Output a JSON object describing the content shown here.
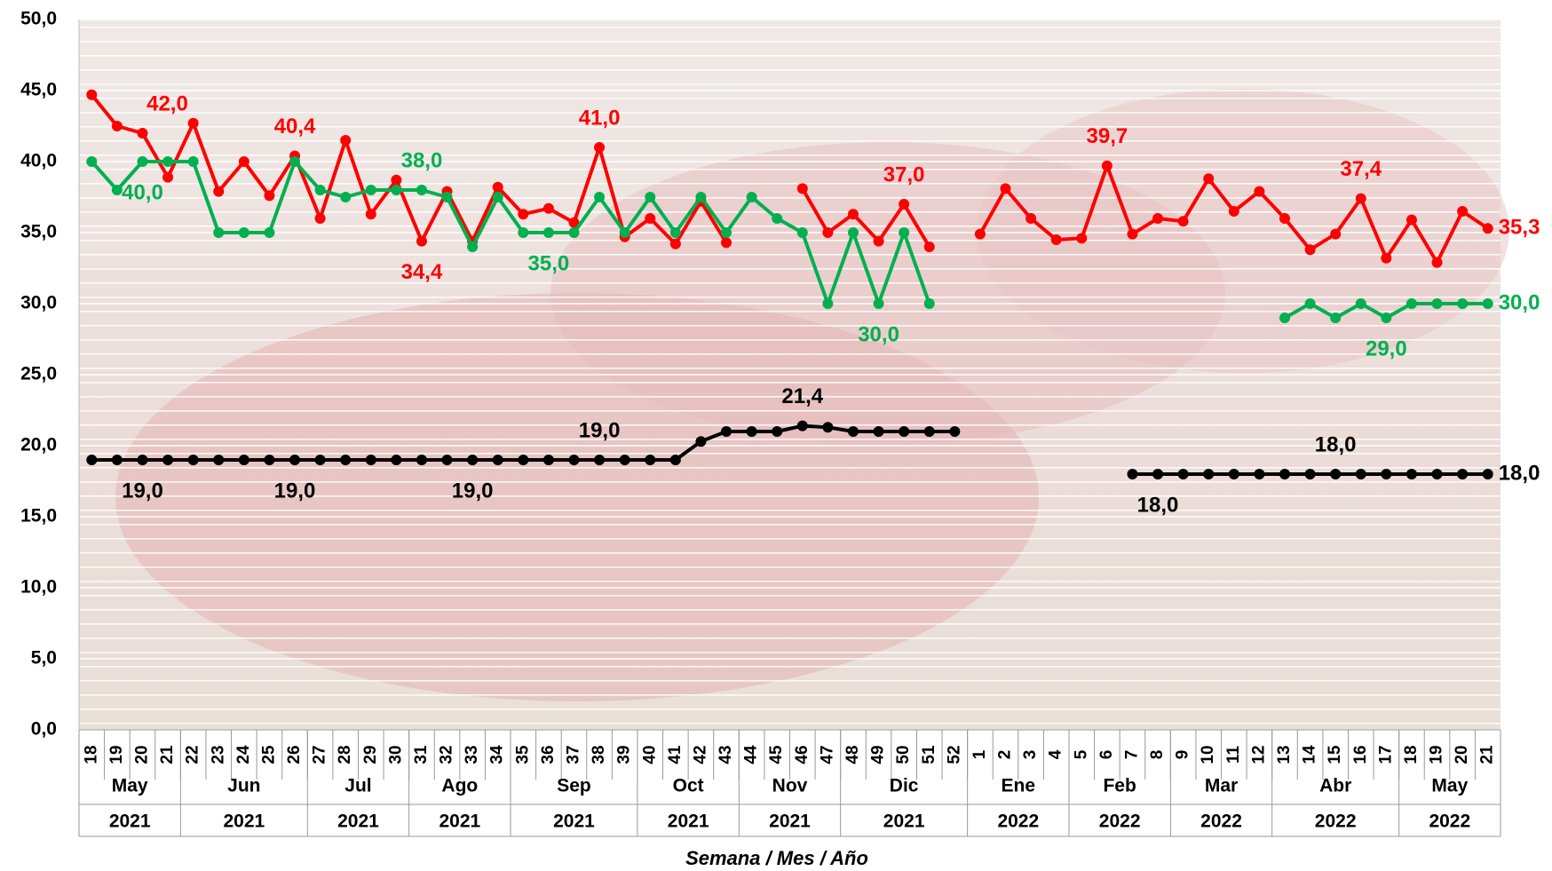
{
  "chart_data": {
    "type": "line",
    "x_label": "Semana / Mes / Año",
    "groups": [
      {
        "month": "May",
        "year": "2021",
        "weeks": [
          "18",
          "19",
          "20",
          "21"
        ]
      },
      {
        "month": "Jun",
        "year": "2021",
        "weeks": [
          "22",
          "23",
          "24",
          "25",
          "26"
        ]
      },
      {
        "month": "Jul",
        "year": "2021",
        "weeks": [
          "27",
          "28",
          "29",
          "30"
        ]
      },
      {
        "month": "Ago",
        "year": "2021",
        "weeks": [
          "31",
          "32",
          "33",
          "34"
        ]
      },
      {
        "month": "Sep",
        "year": "2021",
        "weeks": [
          "35",
          "36",
          "37",
          "38",
          "39"
        ]
      },
      {
        "month": "Oct",
        "year": "2021",
        "weeks": [
          "40",
          "41",
          "42",
          "43"
        ]
      },
      {
        "month": "Nov",
        "year": "2021",
        "weeks": [
          "44",
          "45",
          "46",
          "47"
        ]
      },
      {
        "month": "Dic",
        "year": "2021",
        "weeks": [
          "48",
          "49",
          "50",
          "51",
          "52"
        ]
      },
      {
        "month": "Ene",
        "year": "2022",
        "weeks": [
          "1",
          "2",
          "3",
          "4"
        ]
      },
      {
        "month": "Feb",
        "year": "2022",
        "weeks": [
          "5",
          "6",
          "7",
          "8"
        ]
      },
      {
        "month": "Mar",
        "year": "2022",
        "weeks": [
          "9",
          "10",
          "11",
          "12"
        ]
      },
      {
        "month": "Abr",
        "year": "2022",
        "weeks": [
          "13",
          "14",
          "15",
          "16",
          "17"
        ]
      },
      {
        "month": "May",
        "year": "2022",
        "weeks": [
          "18",
          "19",
          "20",
          "21"
        ]
      }
    ],
    "ylim": [
      0,
      50
    ],
    "yticks": [
      {
        "value": 0,
        "label": "0,0"
      },
      {
        "value": 5,
        "label": "5,0"
      },
      {
        "value": 10,
        "label": "10,0"
      },
      {
        "value": 15,
        "label": "15,0"
      },
      {
        "value": 20,
        "label": "20,0"
      },
      {
        "value": 25,
        "label": "25,0"
      },
      {
        "value": 30,
        "label": "30,0"
      },
      {
        "value": 35,
        "label": "35,0"
      },
      {
        "value": 40,
        "label": "40,0"
      },
      {
        "value": 45,
        "label": "45,0"
      },
      {
        "value": 50,
        "label": "50,0"
      }
    ],
    "series": [
      {
        "color": "#ff0000",
        "values": [
          44.7,
          42.5,
          42.0,
          38.9,
          42.7,
          37.9,
          40.0,
          37.6,
          40.4,
          36.0,
          41.5,
          36.3,
          38.7,
          34.4,
          37.9,
          34.4,
          38.2,
          36.3,
          36.7,
          35.7,
          41.0,
          34.7,
          36.0,
          34.2,
          37.2,
          34.3,
          null,
          null,
          38.1,
          35.0,
          36.3,
          34.4,
          37.0,
          34.0,
          null,
          34.9,
          38.1,
          36.0,
          34.5,
          34.6,
          39.7,
          34.9,
          36.0,
          35.8,
          38.8,
          36.5,
          37.9,
          36.0,
          33.8,
          34.9,
          37.4,
          33.2,
          35.9,
          32.9,
          36.5,
          35.3
        ],
        "value_labels": [
          null,
          null,
          "42,0",
          null,
          null,
          null,
          null,
          null,
          "40,4",
          null,
          null,
          null,
          null,
          "34,4",
          null,
          null,
          null,
          null,
          null,
          null,
          "41,0",
          null,
          null,
          null,
          null,
          null,
          null,
          null,
          null,
          null,
          null,
          null,
          "37,0",
          null,
          null,
          null,
          null,
          null,
          null,
          null,
          "39,7",
          null,
          null,
          null,
          null,
          null,
          null,
          null,
          null,
          null,
          "37,4",
          null,
          null,
          null,
          null,
          "35,3"
        ]
      },
      {
        "color": "#00b050",
        "values": [
          40,
          38,
          40,
          40,
          40,
          35,
          35,
          35,
          40,
          38,
          37.5,
          38,
          38,
          38,
          37.5,
          34,
          37.5,
          35,
          35,
          35,
          37.5,
          35,
          37.5,
          35,
          37.5,
          35,
          37.5,
          36,
          35,
          30,
          35,
          30,
          35,
          30,
          null,
          null,
          null,
          null,
          null,
          null,
          null,
          null,
          null,
          null,
          null,
          null,
          null,
          29,
          30,
          29,
          30,
          29,
          30,
          30,
          30,
          30
        ],
        "value_labels": [
          null,
          null,
          "40,0",
          null,
          null,
          null,
          null,
          null,
          null,
          null,
          null,
          null,
          null,
          "38,0",
          null,
          null,
          null,
          null,
          "35,0",
          null,
          null,
          null,
          null,
          null,
          null,
          null,
          null,
          null,
          null,
          null,
          null,
          "30,0",
          null,
          null,
          null,
          null,
          null,
          null,
          null,
          null,
          null,
          null,
          null,
          null,
          null,
          null,
          null,
          null,
          null,
          null,
          null,
          "29,0",
          null,
          null,
          null,
          "30,0"
        ]
      },
      {
        "color": "#000000",
        "values": [
          19,
          19,
          19,
          19,
          19,
          19,
          19,
          19,
          19,
          19,
          19,
          19,
          19,
          19,
          19,
          19,
          19,
          19,
          19,
          19,
          19,
          19,
          19,
          19,
          20.3,
          21,
          21,
          21,
          21.4,
          21.3,
          21,
          21,
          21,
          21,
          21,
          null,
          null,
          null,
          null,
          null,
          null,
          18,
          18,
          18,
          18,
          18,
          18,
          18,
          18,
          18,
          18,
          18,
          18,
          18,
          18,
          18
        ],
        "value_labels": [
          null,
          null,
          "19,0",
          null,
          null,
          null,
          null,
          null,
          "19,0",
          null,
          null,
          null,
          null,
          null,
          null,
          "19,0",
          null,
          null,
          null,
          null,
          "19,0",
          null,
          null,
          null,
          null,
          null,
          null,
          null,
          "21,4",
          null,
          null,
          null,
          null,
          null,
          null,
          null,
          null,
          null,
          null,
          null,
          null,
          null,
          "18,0",
          null,
          null,
          null,
          null,
          null,
          null,
          "18,0",
          null,
          null,
          null,
          null,
          null,
          "18,0"
        ]
      }
    ],
    "grid": true
  }
}
